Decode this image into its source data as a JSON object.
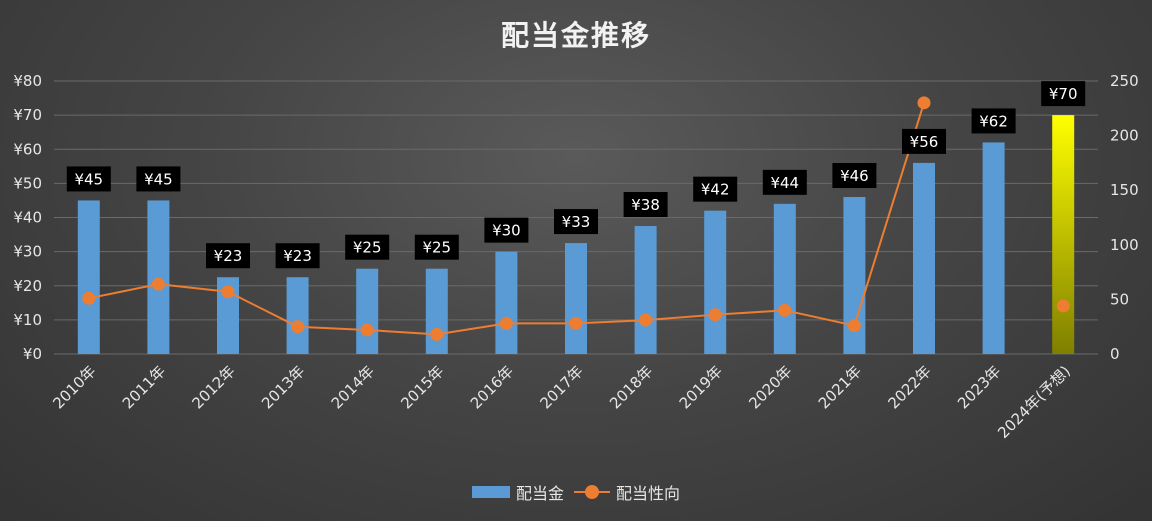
{
  "chart_data": {
    "type": "bar",
    "title": "配当金推移",
    "categories": [
      "2010年",
      "2011年",
      "2012年",
      "2013年",
      "2014年",
      "2015年",
      "2016年",
      "2017年",
      "2018年",
      "2019年",
      "2020年",
      "2021年",
      "2022年",
      "2023年",
      "2024年(予想)"
    ],
    "series": [
      {
        "name": "配当金",
        "type": "bar",
        "axis": "left",
        "values": [
          45,
          45,
          22.5,
          22.5,
          25,
          25,
          30,
          32.5,
          37.5,
          42,
          44,
          46,
          56,
          62,
          70
        ],
        "data_labels": [
          "¥45",
          "¥45",
          "¥23",
          "¥23",
          "¥25",
          "¥25",
          "¥30",
          "¥33",
          "¥38",
          "¥42",
          "¥44",
          "¥46",
          "¥56",
          "¥62",
          "¥70"
        ],
        "color": "#5b9bd5",
        "highlight": {
          "index": 14,
          "gradient": [
            "#ffff00",
            "#7f7f00"
          ]
        }
      },
      {
        "name": "配当性向",
        "type": "line",
        "axis": "right",
        "values": [
          51,
          64,
          57,
          25,
          22,
          18,
          28,
          28,
          31,
          36,
          40,
          26,
          230,
          null,
          44
        ],
        "color": "#ed7d31"
      }
    ],
    "y_left": {
      "min": 0,
      "max": 80,
      "step": 10,
      "tick_labels": [
        "¥0",
        "¥10",
        "¥20",
        "¥30",
        "¥40",
        "¥50",
        "¥60",
        "¥70",
        "¥80"
      ]
    },
    "y_right": {
      "min": 0,
      "max": 250,
      "step": 50,
      "tick_labels": [
        "0",
        "50",
        "100",
        "150",
        "200",
        "250"
      ]
    },
    "grid": true,
    "legend_position": "bottom"
  }
}
